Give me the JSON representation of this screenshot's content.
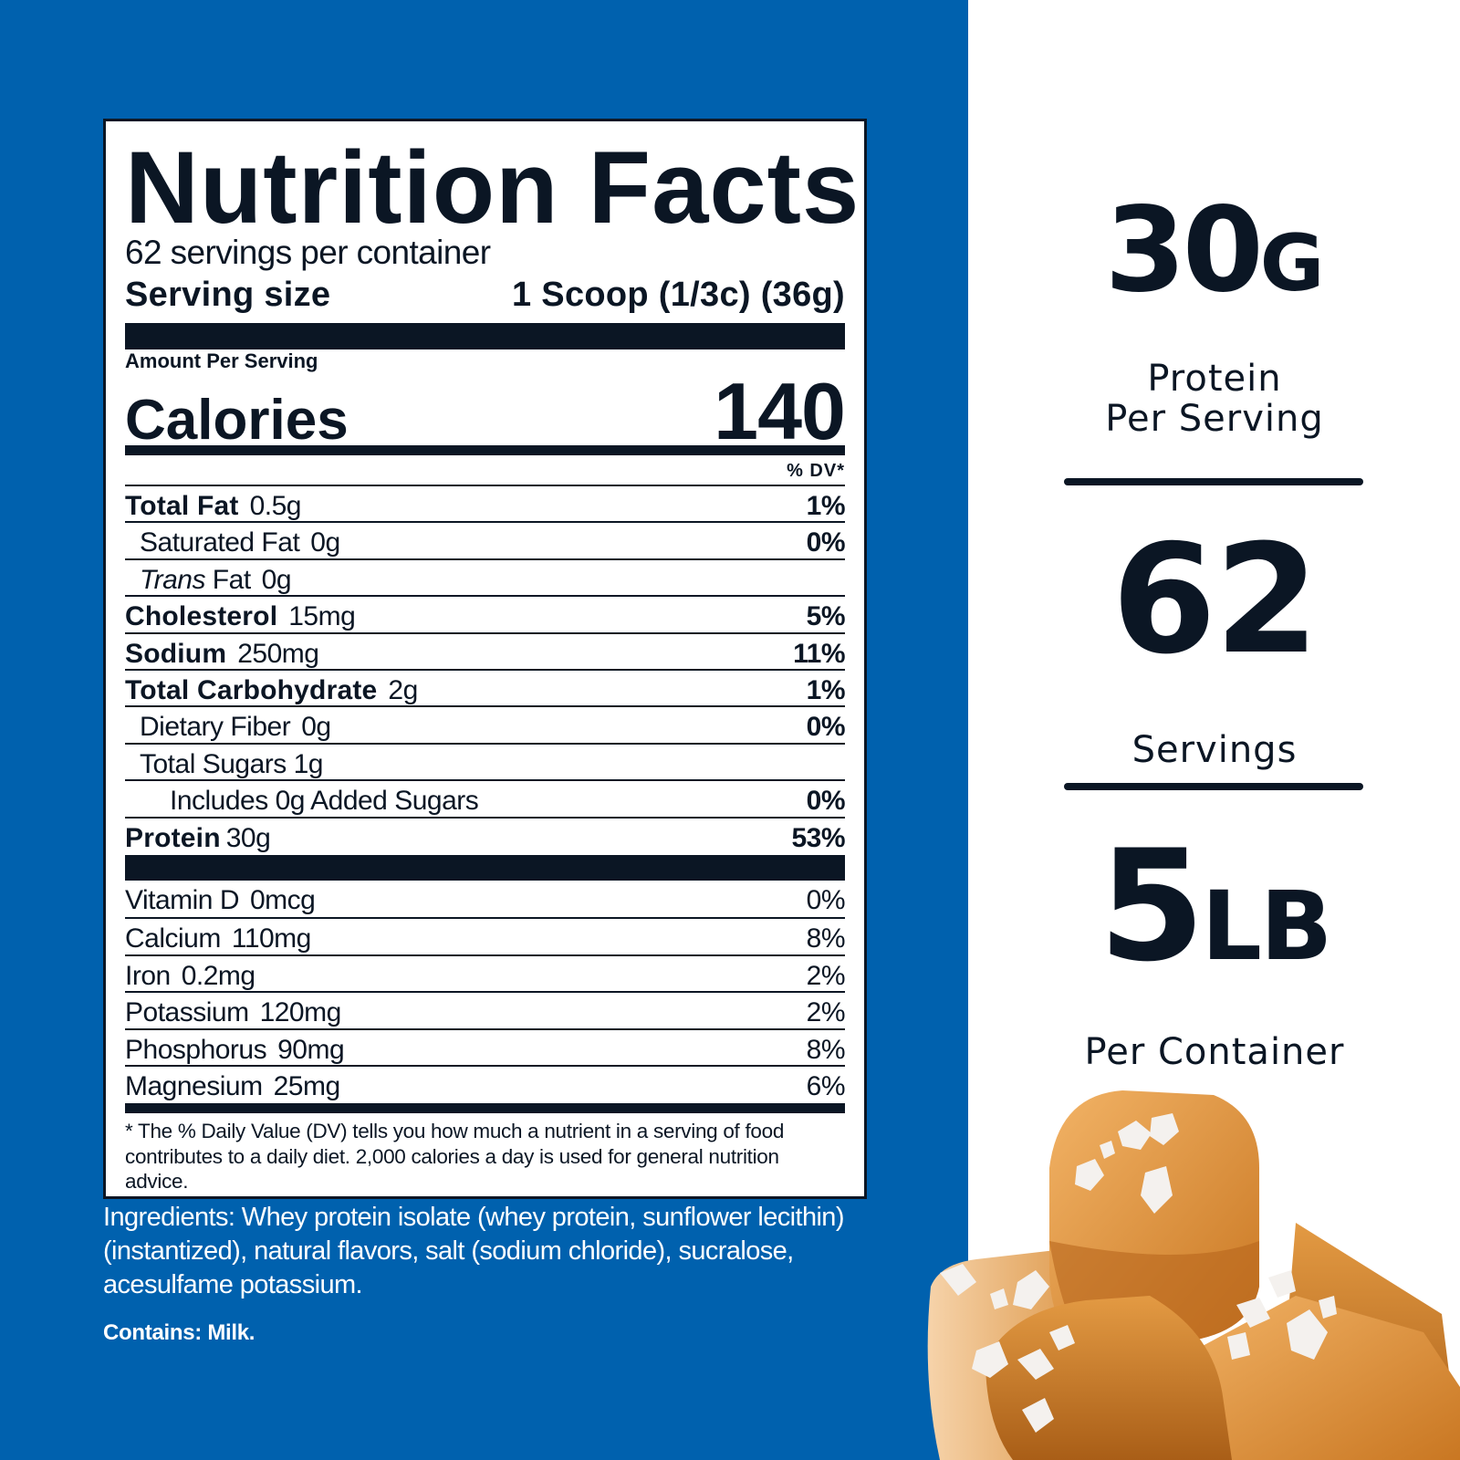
{
  "colors": {
    "panel_blue": "#0061ae",
    "ink": "#0b1624",
    "caramel": "#e0962f"
  },
  "label": {
    "title": "Nutrition Facts",
    "servings_per_container": "62 servings per container",
    "serving_size_label": "Serving size",
    "serving_size_value": "1 Scoop (1/3c) (36g)",
    "amount_per_serving": "Amount Per Serving",
    "calories_label": "Calories",
    "calories_value": "140",
    "dv_header": "% DV*",
    "nutrients": [
      {
        "name": "Total Fat",
        "amount": "0.5g",
        "dv": "1%",
        "bold": true,
        "indent": 0
      },
      {
        "name": "Saturated Fat",
        "amount": "0g",
        "dv": "0%",
        "bold": false,
        "indent": 1
      },
      {
        "italic_prefix": "Trans",
        "name": " Fat",
        "amount": "0g",
        "dv": "",
        "bold": false,
        "indent": 1
      },
      {
        "name": "Cholesterol",
        "amount": "15mg",
        "dv": "5%",
        "bold": true,
        "indent": 0
      },
      {
        "name": "Sodium",
        "amount": "250mg",
        "dv": "11%",
        "bold": true,
        "indent": 0
      },
      {
        "name": "Total Carbohydrate",
        "amount": "2g",
        "dv": "1%",
        "bold": true,
        "indent": 0
      },
      {
        "name": "Dietary Fiber",
        "amount": "0g",
        "dv": "0%",
        "bold": false,
        "indent": 1
      },
      {
        "name": "Total Sugars 1g",
        "amount": "",
        "dv": "",
        "bold": false,
        "indent": 1
      },
      {
        "name": "Includes 0g Added Sugars",
        "amount": "",
        "dv": "0%",
        "bold": false,
        "indent": 2
      },
      {
        "name": "Protein",
        "amount": "30g",
        "dv": "53%",
        "bold": true,
        "indent": 0
      }
    ],
    "vitamins": [
      {
        "name": "Vitamin D",
        "amount": "0mcg",
        "dv": "0%"
      },
      {
        "name": "Calcium",
        "amount": "110mg",
        "dv": "8%"
      },
      {
        "name": "Iron",
        "amount": "0.2mg",
        "dv": "2%"
      },
      {
        "name": "Potassium",
        "amount": "120mg",
        "dv": "2%"
      },
      {
        "name": "Phosphorus",
        "amount": "90mg",
        "dv": "8%"
      },
      {
        "name": "Magnesium",
        "amount": "25mg",
        "dv": "6%"
      }
    ],
    "footnote": "* The % Daily Value (DV) tells you how much a nutrient in a serving of food contributes to a daily diet. 2,000 calories a day is used for general nutrition advice."
  },
  "ingredients": "Ingredients: Whey protein isolate (whey protein, sunflower lecithin) (instantized), natural flavors, salt (sodium chloride), sucralose, acesulfame potassium.",
  "contains": "Contains: Milk.",
  "highlights": [
    {
      "number": "30",
      "unit": "G",
      "caption_line1": "Protein",
      "caption_line2": "Per Serving"
    },
    {
      "number": "62",
      "unit": "",
      "caption_line1": "Servings",
      "caption_line2": ""
    },
    {
      "number": "5",
      "unit": "LB",
      "caption_line1": "Per Container",
      "caption_line2": ""
    }
  ],
  "image": {
    "subject": "salted-caramel-cubes"
  }
}
